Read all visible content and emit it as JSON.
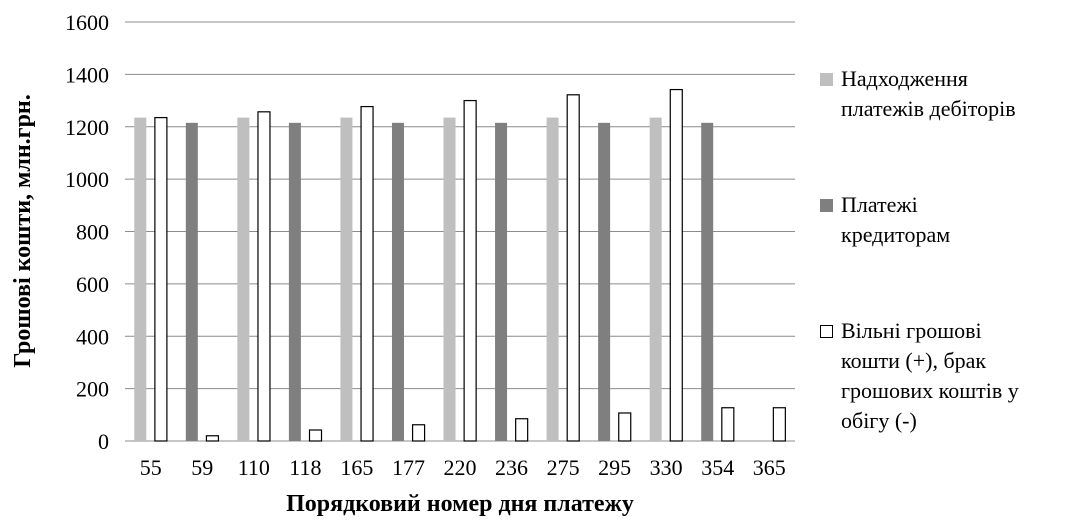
{
  "chart_data": {
    "type": "bar",
    "xlabel": "Порядковий номер дня платежу",
    "ylabel": "Грошові кошти, млн.грн.",
    "ylim": [
      0,
      1600
    ],
    "yticks": [
      0,
      200,
      400,
      600,
      800,
      1000,
      1200,
      1400,
      1600
    ],
    "categories": [
      "55",
      "59",
      "110",
      "118",
      "165",
      "177",
      "220",
      "236",
      "275",
      "295",
      "330",
      "354",
      "365"
    ],
    "grid": true,
    "legend_position": "right",
    "series": [
      {
        "name": "Надходження платежів дебіторів",
        "color": "#bfbfbf",
        "values": [
          1235,
          0,
          1235,
          0,
          1235,
          0,
          1235,
          0,
          1235,
          0,
          1235,
          0,
          0
        ]
      },
      {
        "name": "Платежі кредиторам",
        "color": "#7f7f7f",
        "values": [
          0,
          1215,
          0,
          1215,
          0,
          1215,
          0,
          1215,
          0,
          1215,
          0,
          1215,
          0
        ]
      },
      {
        "name": "Вільні грошові кошти (+), брак грошових коштів у обігу (-)",
        "color": "#ffffff",
        "values": [
          1235,
          20,
          1257,
          42,
          1277,
          62,
          1300,
          85,
          1322,
          107,
          1342,
          127,
          127
        ]
      }
    ]
  },
  "legend": {
    "items": [
      {
        "label": "Надходження\nплатежів дебіторів"
      },
      {
        "label": "Платежі\nкредиторам"
      },
      {
        "label": "Вільні грошові\nкошти (+), брак\nгрошових коштів у\nобігу (-)"
      }
    ]
  }
}
